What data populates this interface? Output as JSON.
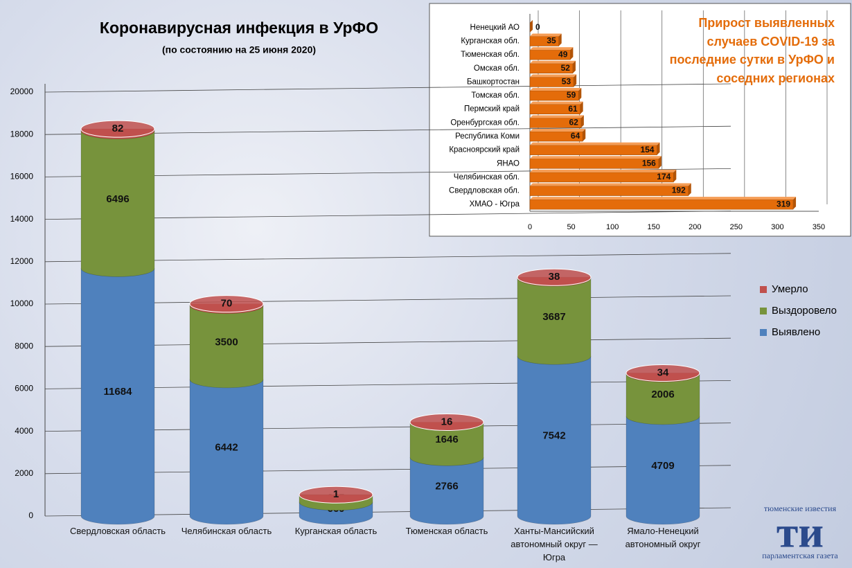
{
  "chart_data": [
    {
      "type": "bar",
      "stacked": true,
      "title": "Коронавирусная инфекция в УрФО",
      "subtitle": "(по состоянию на 25 июня 2020)",
      "categories": [
        "Свердловская область",
        "Челябинская область",
        "Курганская область",
        "Тюменская область",
        "Ханты-Мансийский автономный округ — Югра",
        "Ямало-Ненецкий автономный округ"
      ],
      "series": [
        {
          "name": "Выявлено",
          "color": "#4f81bd",
          "values": [
            11684,
            6442,
            660,
            2766,
            7542,
            4709
          ]
        },
        {
          "name": "Выздоровело",
          "color": "#77933c",
          "values": [
            6496,
            3500,
            345,
            1646,
            3687,
            2006
          ]
        },
        {
          "name": "Умерло",
          "color": "#c0504d",
          "values": [
            82,
            70,
            1,
            16,
            38,
            34
          ]
        }
      ],
      "ylim": [
        0,
        20000
      ],
      "yticks": [
        0,
        2000,
        4000,
        6000,
        8000,
        10000,
        12000,
        14000,
        16000,
        18000,
        20000
      ],
      "grid": true,
      "legend": "right"
    },
    {
      "type": "bar",
      "orientation": "horizontal",
      "title": "Прирост выявленных случаев COVID-19 за последние сутки в УрФО и соседних регионах",
      "categories": [
        "Ненецкий АО",
        "Курганская обл.",
        "Тюменская обл.",
        "Омская обл.",
        "Башкортостан",
        "Томская обл.",
        "Пермский край",
        "Оренбургская обл.",
        "Республика Коми",
        "Красноярский край",
        "ЯНАО",
        "Челябинская обл.",
        "Свердловская обл.",
        "ХМАО - Югра"
      ],
      "values": [
        0,
        35,
        49,
        52,
        53,
        59,
        61,
        62,
        64,
        154,
        156,
        174,
        192,
        319
      ],
      "color": "#e46c0a",
      "xlim": [
        0,
        350
      ],
      "xticks": [
        0,
        50,
        100,
        150,
        200,
        250,
        300,
        350
      ],
      "grid": true
    }
  ],
  "logo": {
    "top": "тюменские известия",
    "mark": "ти",
    "bottom": "парламентская газета"
  }
}
